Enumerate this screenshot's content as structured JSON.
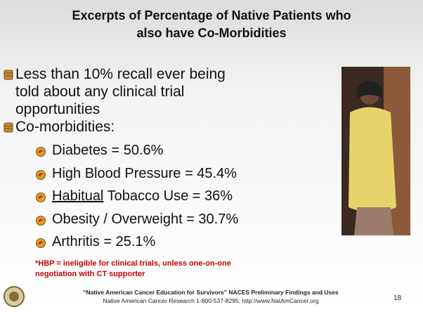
{
  "slide": {
    "title_lines": [
      "Excerpts of Percentage of Native Patients who",
      "also have Co-Morbidities"
    ],
    "bullets": [
      {
        "text": "Less than 10% recall ever being told about any clinical trial opportunities"
      },
      {
        "text": "Co-morbidities:",
        "sub": [
          {
            "text": "Diabetes = 50.6%"
          },
          {
            "text": "High Blood Pressure = 45.4%"
          },
          {
            "underlined": "Habitual",
            "text": " Tobacco Use = 36%"
          },
          {
            "text": "Obesity / Overweight = 30.7%"
          },
          {
            "text": "Arthritis = 25.1%"
          }
        ]
      }
    ],
    "note": "*HBP = ineligible for clinical trials, unless one-on-one negotiation with CT supporter",
    "footer": {
      "line1": "“Native American Cancer Education for Survivors” NACES Preliminary Findings and Uses",
      "line2": "Native American Cancer Research 1-800-537-8295; http://www.NatAmCancer.org"
    },
    "page_number": "18"
  }
}
